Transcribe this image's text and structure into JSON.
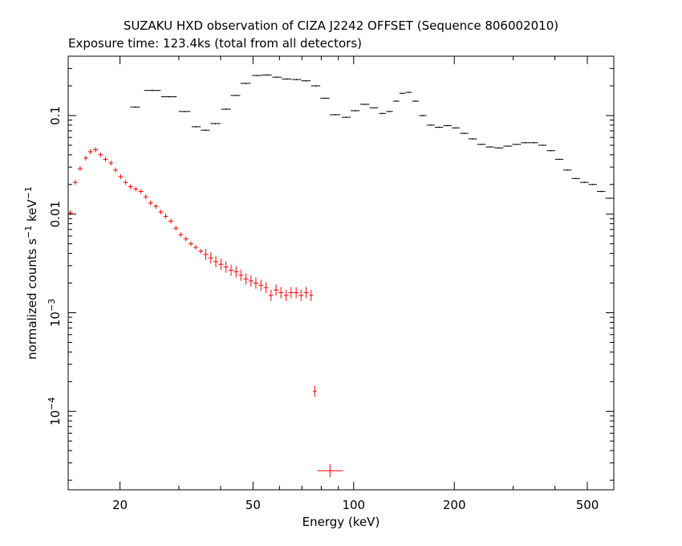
{
  "chart_data": {
    "type": "scatter",
    "title": "SUZAKU HXD observation of CIZA J2242 OFFSET (Sequence 806002010)",
    "subtitle": "Exposure time: 123.4ks (total from all detectors)",
    "xlabel": "Energy (keV)",
    "ylabel": {
      "base": "normalized counts s",
      "exp1": "−1",
      "mid": " keV",
      "exp2": "−1"
    },
    "xscale": "log",
    "yscale": "log",
    "xlim": [
      14,
      600
    ],
    "ylim": [
      1.6e-05,
      0.4
    ],
    "x_ticks": [
      {
        "value": 20,
        "label": "20"
      },
      {
        "value": 50,
        "label": "50"
      },
      {
        "value": 100,
        "label": "100"
      },
      {
        "value": 200,
        "label": "200"
      },
      {
        "value": 500,
        "label": "500"
      }
    ],
    "y_ticks": [
      {
        "value": 0.1,
        "label": "0.1"
      },
      {
        "value": 0.01,
        "label": "0.01"
      },
      {
        "value": 0.001,
        "base": "10",
        "exp": "−3"
      },
      {
        "value": 0.0001,
        "base": "10",
        "exp": "−4"
      }
    ],
    "colors": {
      "gso": "#000000",
      "pin": "#ff0000",
      "axes": "#000000"
    },
    "series": [
      {
        "color": "#000000",
        "points": [
          [
            22.2,
            0.122
          ],
          [
            25.0,
            0.18
          ],
          [
            28.0,
            0.155
          ],
          [
            31.2,
            0.11
          ],
          [
            33.8,
            0.077
          ],
          [
            36.0,
            0.071
          ],
          [
            38.6,
            0.083
          ],
          [
            41.5,
            0.116
          ],
          [
            44.3,
            0.16
          ],
          [
            47.5,
            0.212
          ],
          [
            51.4,
            0.255
          ],
          [
            55.0,
            0.258
          ],
          [
            59.0,
            0.245
          ],
          [
            63.0,
            0.235
          ],
          [
            67.5,
            0.232
          ],
          [
            72.0,
            0.225
          ],
          [
            77.0,
            0.2
          ],
          [
            82.0,
            0.15
          ],
          [
            88.0,
            0.102
          ],
          [
            95.0,
            0.096
          ],
          [
            101.0,
            0.112
          ],
          [
            108.0,
            0.13
          ],
          [
            115.0,
            0.12
          ],
          [
            122.0,
            0.105
          ],
          [
            128.0,
            0.11
          ],
          [
            134.0,
            0.14
          ],
          [
            140.0,
            0.168
          ],
          [
            146.0,
            0.172
          ],
          [
            153.0,
            0.14
          ],
          [
            161.0,
            0.1
          ],
          [
            170.0,
            0.08
          ],
          [
            180.0,
            0.076
          ],
          [
            191.0,
            0.079
          ],
          [
            202.0,
            0.075
          ],
          [
            214.0,
            0.066
          ],
          [
            227.0,
            0.058
          ],
          [
            241.0,
            0.051
          ],
          [
            256.0,
            0.048
          ],
          [
            272.0,
            0.047
          ],
          [
            289.0,
            0.049
          ],
          [
            307.0,
            0.051
          ],
          [
            326.0,
            0.053
          ],
          [
            346.0,
            0.053
          ],
          [
            367.0,
            0.05
          ],
          [
            389.0,
            0.044
          ],
          [
            412.0,
            0.036
          ],
          [
            436.0,
            0.028
          ],
          [
            462.0,
            0.023
          ],
          [
            490.0,
            0.021
          ],
          [
            519.0,
            0.02
          ],
          [
            550.0,
            0.017
          ],
          [
            583.0,
            0.0145
          ]
        ]
      },
      {
        "color": "#ff0000",
        "points": [
          [
            14.2,
            0.0103
          ],
          [
            14.7,
            0.021
          ],
          [
            15.2,
            0.029
          ],
          [
            15.8,
            0.037
          ],
          [
            16.3,
            0.043
          ],
          [
            16.9,
            0.045
          ],
          [
            17.5,
            0.04
          ],
          [
            18.1,
            0.036
          ],
          [
            18.8,
            0.033
          ],
          [
            19.4,
            0.028
          ],
          [
            20.1,
            0.024
          ],
          [
            20.8,
            0.021
          ],
          [
            21.5,
            0.019
          ],
          [
            22.3,
            0.018
          ],
          [
            23.1,
            0.017
          ],
          [
            23.9,
            0.015
          ],
          [
            24.7,
            0.013
          ],
          [
            25.6,
            0.012
          ],
          [
            26.5,
            0.0105
          ],
          [
            27.4,
            0.0095
          ],
          [
            28.4,
            0.0085
          ],
          [
            29.4,
            0.0072
          ],
          [
            30.4,
            0.0062
          ],
          [
            31.5,
            0.0056
          ],
          [
            32.6,
            0.005
          ],
          [
            33.7,
            0.0046
          ],
          [
            34.9,
            0.0042
          ],
          [
            36.1,
            0.0039
          ],
          [
            37.4,
            0.0036
          ],
          [
            38.7,
            0.0033
          ],
          [
            40.1,
            0.0031
          ],
          [
            41.5,
            0.0029
          ],
          [
            43.0,
            0.0027
          ],
          [
            44.5,
            0.0026
          ],
          [
            46.0,
            0.0024
          ],
          [
            47.6,
            0.0022
          ],
          [
            49.3,
            0.0021
          ],
          [
            51.0,
            0.002
          ],
          [
            52.8,
            0.0019
          ],
          [
            54.7,
            0.0018
          ],
          [
            56.6,
            0.0015
          ],
          [
            58.6,
            0.0017
          ],
          [
            60.6,
            0.0016
          ],
          [
            62.8,
            0.0015
          ],
          [
            65.0,
            0.0016
          ],
          [
            67.3,
            0.0016
          ],
          [
            69.6,
            0.0015
          ],
          [
            72.1,
            0.0016
          ],
          [
            74.6,
            0.0015
          ],
          [
            76.5,
            0.00016
          ],
          [
            85.0,
            2.5e-05
          ]
        ]
      }
    ],
    "grid": false,
    "legend": "none"
  }
}
